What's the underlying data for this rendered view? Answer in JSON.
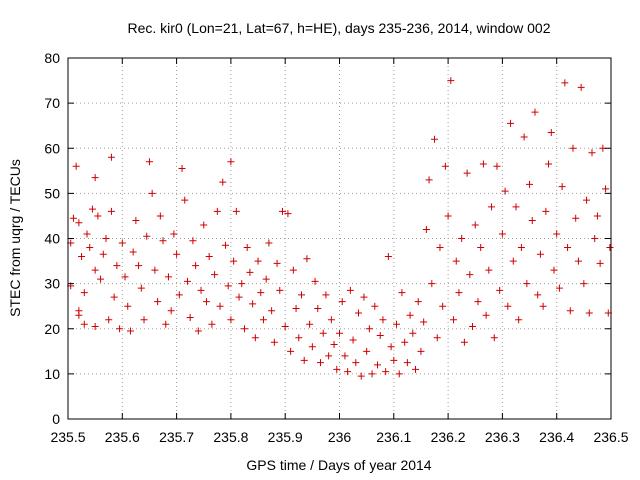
{
  "chart_data": {
    "type": "scatter",
    "title": "Rec. kir0 (Lon=21, Lat=67, h=HE), days 235-236, 2014, window 002",
    "xlabel": "GPS time / Days of year 2014",
    "ylabel": "STEC from uqrg / TECUs",
    "xlim": [
      235.5,
      236.5
    ],
    "ylim": [
      0,
      80
    ],
    "xticks": [
      "235.5",
      "235.6",
      "235.7",
      "235.8",
      "235.9",
      "236",
      "236.1",
      "236.2",
      "236.3",
      "236.4",
      "236.5"
    ],
    "yticks": [
      "0",
      "10",
      "20",
      "30",
      "40",
      "50",
      "60",
      "70",
      "80"
    ],
    "grid": true,
    "marker": "+",
    "color": "#d00000",
    "points": [
      [
        235.505,
        29.5
      ],
      [
        235.505,
        39.0
      ],
      [
        235.51,
        44.5
      ],
      [
        235.515,
        56.0
      ],
      [
        235.52,
        43.5
      ],
      [
        235.52,
        24.0
      ],
      [
        235.52,
        23.0
      ],
      [
        235.525,
        36.0
      ],
      [
        235.53,
        28.0
      ],
      [
        235.53,
        21.0
      ],
      [
        235.535,
        41.0
      ],
      [
        235.54,
        38.0
      ],
      [
        235.545,
        46.5
      ],
      [
        235.55,
        53.5
      ],
      [
        235.55,
        33.0
      ],
      [
        235.55,
        20.5
      ],
      [
        235.555,
        45.0
      ],
      [
        235.56,
        31.0
      ],
      [
        235.565,
        36.5
      ],
      [
        235.57,
        40.0
      ],
      [
        235.575,
        22.0
      ],
      [
        235.58,
        58.0
      ],
      [
        235.58,
        46.0
      ],
      [
        235.585,
        27.0
      ],
      [
        235.59,
        34.0
      ],
      [
        235.595,
        20.0
      ],
      [
        235.6,
        39.0
      ],
      [
        235.605,
        31.5
      ],
      [
        235.61,
        25.0
      ],
      [
        235.615,
        19.5
      ],
      [
        235.62,
        37.0
      ],
      [
        235.625,
        44.0
      ],
      [
        235.63,
        34.0
      ],
      [
        235.635,
        29.0
      ],
      [
        235.64,
        22.0
      ],
      [
        235.645,
        40.5
      ],
      [
        235.65,
        57.0
      ],
      [
        235.655,
        50.0
      ],
      [
        235.66,
        33.0
      ],
      [
        235.665,
        26.0
      ],
      [
        235.67,
        45.0
      ],
      [
        235.675,
        39.5
      ],
      [
        235.68,
        21.0
      ],
      [
        235.685,
        31.5
      ],
      [
        235.69,
        24.0
      ],
      [
        235.695,
        41.0
      ],
      [
        235.7,
        36.5
      ],
      [
        235.705,
        27.5
      ],
      [
        235.71,
        55.5
      ],
      [
        235.715,
        48.5
      ],
      [
        235.72,
        30.5
      ],
      [
        235.725,
        22.5
      ],
      [
        235.73,
        39.5
      ],
      [
        235.735,
        34.0
      ],
      [
        235.74,
        19.5
      ],
      [
        235.745,
        28.5
      ],
      [
        235.75,
        43.0
      ],
      [
        235.755,
        26.0
      ],
      [
        235.76,
        36.0
      ],
      [
        235.765,
        21.0
      ],
      [
        235.77,
        32.0
      ],
      [
        235.775,
        46.0
      ],
      [
        235.78,
        25.0
      ],
      [
        235.785,
        52.5
      ],
      [
        235.79,
        38.5
      ],
      [
        235.795,
        29.5
      ],
      [
        235.8,
        57.0
      ],
      [
        235.8,
        22.0
      ],
      [
        235.805,
        35.0
      ],
      [
        235.81,
        46.0
      ],
      [
        235.815,
        27.0
      ],
      [
        235.82,
        30.0
      ],
      [
        235.825,
        20.0
      ],
      [
        235.83,
        38.0
      ],
      [
        235.835,
        32.5
      ],
      [
        235.84,
        25.5
      ],
      [
        235.845,
        18.0
      ],
      [
        235.85,
        35.0
      ],
      [
        235.855,
        28.0
      ],
      [
        235.86,
        22.0
      ],
      [
        235.865,
        31.0
      ],
      [
        235.87,
        39.0
      ],
      [
        235.875,
        24.0
      ],
      [
        235.88,
        17.0
      ],
      [
        235.885,
        34.5
      ],
      [
        235.89,
        28.5
      ],
      [
        235.895,
        46.0
      ],
      [
        235.9,
        20.5
      ],
      [
        235.905,
        45.5
      ],
      [
        235.91,
        15.0
      ],
      [
        235.915,
        33.0
      ],
      [
        235.92,
        24.5
      ],
      [
        235.925,
        18.0
      ],
      [
        235.93,
        27.5
      ],
      [
        235.935,
        13.0
      ],
      [
        235.94,
        35.5
      ],
      [
        235.945,
        21.0
      ],
      [
        235.95,
        16.0
      ],
      [
        235.955,
        30.5
      ],
      [
        235.96,
        24.5
      ],
      [
        235.965,
        12.5
      ],
      [
        235.97,
        19.0
      ],
      [
        235.975,
        27.5
      ],
      [
        235.98,
        14.0
      ],
      [
        235.985,
        22.0
      ],
      [
        235.99,
        16.5
      ],
      [
        235.995,
        11.0
      ],
      [
        236.0,
        19.0
      ],
      [
        236.005,
        26.0
      ],
      [
        236.01,
        14.0
      ],
      [
        236.015,
        10.5
      ],
      [
        236.02,
        28.5
      ],
      [
        236.025,
        17.5
      ],
      [
        236.03,
        12.5
      ],
      [
        236.035,
        23.5
      ],
      [
        236.04,
        9.5
      ],
      [
        236.045,
        27.0
      ],
      [
        236.05,
        15.0
      ],
      [
        236.055,
        20.0
      ],
      [
        236.06,
        10.0
      ],
      [
        236.065,
        25.0
      ],
      [
        236.07,
        12.0
      ],
      [
        236.075,
        18.5
      ],
      [
        236.08,
        22.0
      ],
      [
        236.085,
        10.5
      ],
      [
        236.09,
        36.0
      ],
      [
        236.095,
        16.0
      ],
      [
        236.1,
        13.0
      ],
      [
        236.105,
        21.0
      ],
      [
        236.11,
        10.0
      ],
      [
        236.115,
        28.0
      ],
      [
        236.12,
        17.0
      ],
      [
        236.125,
        12.5
      ],
      [
        236.13,
        23.0
      ],
      [
        236.135,
        19.0
      ],
      [
        236.14,
        11.0
      ],
      [
        236.145,
        26.0
      ],
      [
        236.15,
        15.0
      ],
      [
        236.155,
        21.5
      ],
      [
        236.16,
        42.0
      ],
      [
        236.165,
        53.0
      ],
      [
        236.17,
        30.0
      ],
      [
        236.175,
        62.0
      ],
      [
        236.18,
        18.0
      ],
      [
        236.185,
        38.0
      ],
      [
        236.19,
        25.0
      ],
      [
        236.195,
        56.0
      ],
      [
        236.2,
        45.0
      ],
      [
        236.205,
        75.0
      ],
      [
        236.21,
        22.0
      ],
      [
        236.215,
        35.0
      ],
      [
        236.22,
        28.0
      ],
      [
        236.225,
        40.0
      ],
      [
        236.23,
        17.0
      ],
      [
        236.235,
        54.5
      ],
      [
        236.24,
        32.0
      ],
      [
        236.245,
        20.5
      ],
      [
        236.25,
        43.0
      ],
      [
        236.255,
        26.0
      ],
      [
        236.26,
        38.0
      ],
      [
        236.265,
        56.5
      ],
      [
        236.27,
        23.0
      ],
      [
        236.275,
        33.0
      ],
      [
        236.28,
        47.0
      ],
      [
        236.285,
        18.0
      ],
      [
        236.29,
        56.0
      ],
      [
        236.295,
        28.5
      ],
      [
        236.3,
        41.0
      ],
      [
        236.305,
        50.5
      ],
      [
        236.31,
        25.0
      ],
      [
        236.315,
        65.5
      ],
      [
        236.32,
        35.0
      ],
      [
        236.325,
        47.0
      ],
      [
        236.33,
        22.0
      ],
      [
        236.335,
        38.0
      ],
      [
        236.34,
        62.5
      ],
      [
        236.345,
        30.0
      ],
      [
        236.35,
        52.0
      ],
      [
        236.355,
        44.0
      ],
      [
        236.36,
        68.0
      ],
      [
        236.365,
        27.5
      ],
      [
        236.37,
        36.5
      ],
      [
        236.375,
        25.0
      ],
      [
        236.38,
        46.0
      ],
      [
        236.385,
        56.5
      ],
      [
        236.39,
        63.5
      ],
      [
        236.395,
        33.0
      ],
      [
        236.4,
        41.0
      ],
      [
        236.405,
        29.0
      ],
      [
        236.41,
        51.5
      ],
      [
        236.415,
        74.5
      ],
      [
        236.42,
        38.0
      ],
      [
        236.425,
        24.0
      ],
      [
        236.43,
        60.0
      ],
      [
        236.435,
        44.5
      ],
      [
        236.44,
        35.0
      ],
      [
        236.445,
        73.5
      ],
      [
        236.45,
        30.0
      ],
      [
        236.455,
        48.5
      ],
      [
        236.46,
        23.5
      ],
      [
        236.465,
        59.0
      ],
      [
        236.47,
        40.0
      ],
      [
        236.475,
        45.0
      ],
      [
        236.48,
        34.5
      ],
      [
        236.485,
        60.0
      ],
      [
        236.49,
        51.0
      ],
      [
        236.495,
        23.5
      ],
      [
        236.498,
        38.0
      ]
    ]
  }
}
